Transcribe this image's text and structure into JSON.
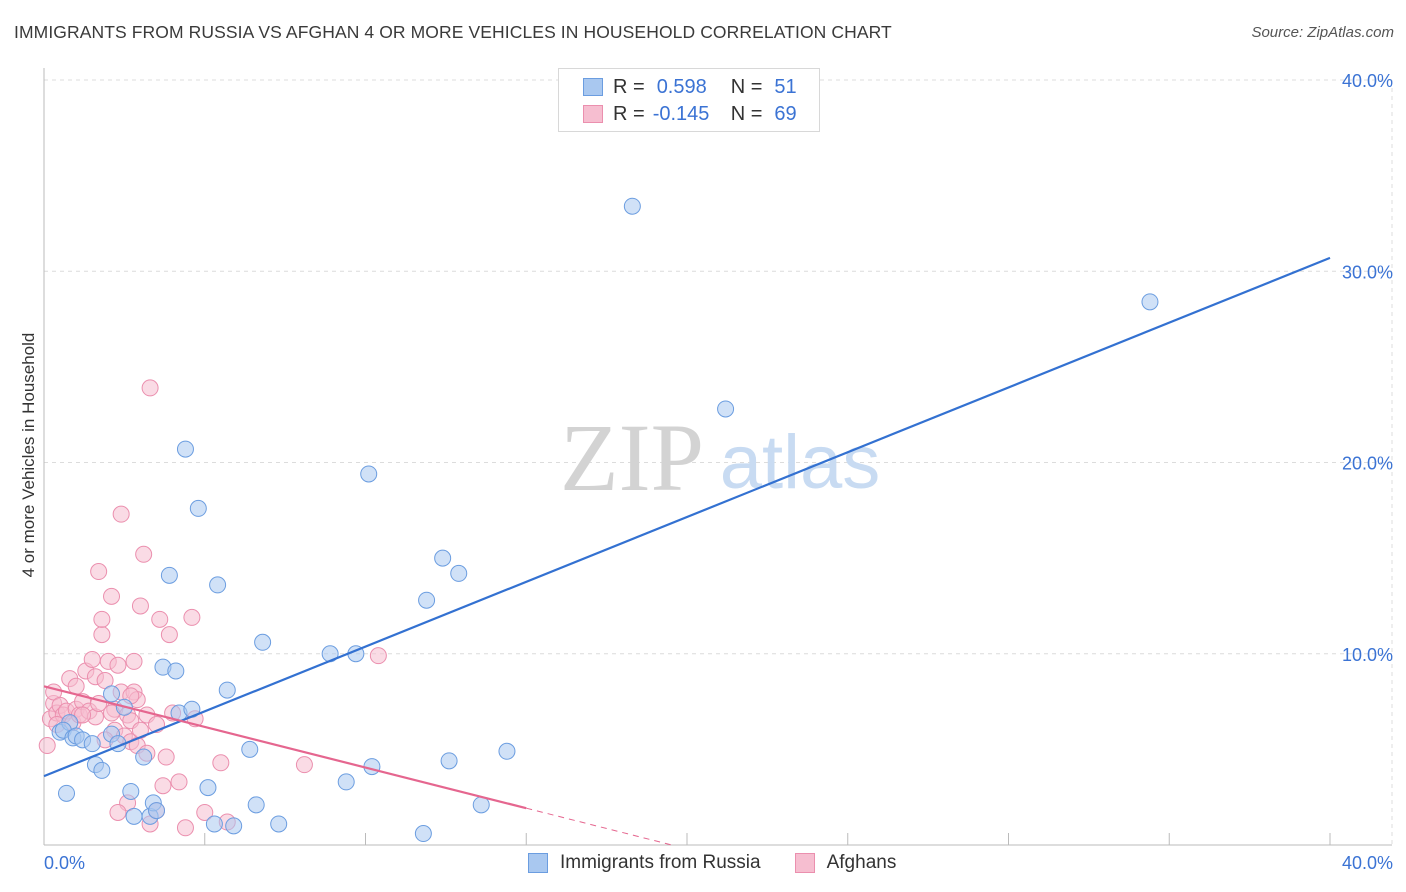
{
  "title": "IMMIGRANTS FROM RUSSIA VS AFGHAN 4 OR MORE VEHICLES IN HOUSEHOLD CORRELATION CHART",
  "source": "Source: ZipAtlas.com",
  "watermark": {
    "zip": "ZIP",
    "atlas": "atlas"
  },
  "legend": {
    "rows": [
      {
        "r_label": "R =",
        "r_value": "0.598",
        "n_label": "N =",
        "n_value": "51"
      },
      {
        "r_label": "R =",
        "r_value": "-0.145",
        "n_label": "N =",
        "n_value": "69"
      }
    ]
  },
  "bottom_legend": {
    "series1": "Immigrants from Russia",
    "series2": "Afghans"
  },
  "colors": {
    "blue_fill": "#a9c8f0",
    "blue_stroke": "#6b9de0",
    "blue_line": "#3371d1",
    "pink_fill": "#f6bed0",
    "pink_stroke": "#eb8fae",
    "pink_line": "#e5668f",
    "axis_text": "#3b73d4",
    "grid": "#dcdcdc"
  },
  "chart_data": {
    "type": "scatter",
    "title": "IMMIGRANTS FROM RUSSIA VS AFGHAN 4 OR MORE VEHICLES IN HOUSEHOLD CORRELATION CHART",
    "xlabel": "",
    "ylabel": "4 or more Vehicles in Household",
    "xlim": [
      0,
      40
    ],
    "ylim": [
      0,
      40
    ],
    "x_tick_labels": [
      "0.0%",
      "40.0%"
    ],
    "y_ticks": [
      10,
      20,
      30,
      40
    ],
    "y_tick_labels": [
      "10.0%",
      "20.0%",
      "30.0%",
      "40.0%"
    ],
    "series": [
      {
        "name": "Immigrants from Russia",
        "color": "blue",
        "R": 0.598,
        "N": 51,
        "trend": {
          "x": [
            0,
            40
          ],
          "y": [
            3.6,
            30.7
          ],
          "solid_to": 40
        },
        "points": [
          [
            0.5,
            5.9
          ],
          [
            0.8,
            6.4
          ],
          [
            0.6,
            6.0
          ],
          [
            0.9,
            5.6
          ],
          [
            0.7,
            2.7
          ],
          [
            1.0,
            5.7
          ],
          [
            1.2,
            5.5
          ],
          [
            1.5,
            5.3
          ],
          [
            1.6,
            4.2
          ],
          [
            1.8,
            3.9
          ],
          [
            2.1,
            5.8
          ],
          [
            2.1,
            7.9
          ],
          [
            2.3,
            5.3
          ],
          [
            2.5,
            7.2
          ],
          [
            2.7,
            2.8
          ],
          [
            2.8,
            1.5
          ],
          [
            3.1,
            4.6
          ],
          [
            3.3,
            1.5
          ],
          [
            3.4,
            2.2
          ],
          [
            3.5,
            1.8
          ],
          [
            3.7,
            9.3
          ],
          [
            3.9,
            14.1
          ],
          [
            4.1,
            9.1
          ],
          [
            4.4,
            20.7
          ],
          [
            4.2,
            6.9
          ],
          [
            4.6,
            7.1
          ],
          [
            4.8,
            17.6
          ],
          [
            5.1,
            3.0
          ],
          [
            5.3,
            1.1
          ],
          [
            5.4,
            13.6
          ],
          [
            5.7,
            8.1
          ],
          [
            5.9,
            1.0
          ],
          [
            6.4,
            5.0
          ],
          [
            6.6,
            2.1
          ],
          [
            6.8,
            10.6
          ],
          [
            7.3,
            1.1
          ],
          [
            8.9,
            10.0
          ],
          [
            9.4,
            3.3
          ],
          [
            10.1,
            19.4
          ],
          [
            10.2,
            4.1
          ],
          [
            11.8,
            0.6
          ],
          [
            11.9,
            12.8
          ],
          [
            12.4,
            15.0
          ],
          [
            12.6,
            4.4
          ],
          [
            12.9,
            14.2
          ],
          [
            13.6,
            2.1
          ],
          [
            14.4,
            4.9
          ],
          [
            18.3,
            33.4
          ],
          [
            21.2,
            22.8
          ],
          [
            34.4,
            28.4
          ],
          [
            9.7,
            10.0
          ]
        ]
      },
      {
        "name": "Afghans",
        "color": "pink",
        "R": -0.145,
        "N": 69,
        "trend": {
          "x": [
            0,
            40
          ],
          "y": [
            8.3,
            -8.7
          ],
          "solid_to": 15
        },
        "points": [
          [
            0.1,
            5.2
          ],
          [
            0.2,
            6.6
          ],
          [
            0.3,
            7.4
          ],
          [
            0.3,
            8.0
          ],
          [
            0.4,
            6.9
          ],
          [
            0.5,
            7.3
          ],
          [
            0.6,
            6.8
          ],
          [
            0.7,
            7.0
          ],
          [
            0.8,
            8.7
          ],
          [
            0.9,
            6.4
          ],
          [
            1.0,
            7.1
          ],
          [
            1.0,
            8.3
          ],
          [
            1.1,
            6.8
          ],
          [
            1.2,
            7.5
          ],
          [
            1.3,
            9.1
          ],
          [
            1.4,
            7.0
          ],
          [
            1.5,
            9.7
          ],
          [
            1.6,
            8.8
          ],
          [
            1.6,
            6.7
          ],
          [
            1.7,
            7.4
          ],
          [
            1.7,
            14.3
          ],
          [
            1.8,
            11.0
          ],
          [
            1.8,
            11.8
          ],
          [
            1.9,
            8.6
          ],
          [
            2.0,
            9.6
          ],
          [
            2.1,
            13.0
          ],
          [
            2.2,
            7.1
          ],
          [
            2.2,
            6.0
          ],
          [
            2.3,
            9.4
          ],
          [
            2.4,
            17.3
          ],
          [
            2.4,
            8.0
          ],
          [
            2.5,
            5.7
          ],
          [
            2.6,
            6.8
          ],
          [
            2.6,
            2.2
          ],
          [
            2.7,
            6.5
          ],
          [
            2.7,
            5.4
          ],
          [
            2.8,
            9.6
          ],
          [
            2.8,
            8.0
          ],
          [
            2.9,
            5.2
          ],
          [
            2.9,
            7.6
          ],
          [
            3.0,
            12.5
          ],
          [
            3.1,
            15.2
          ],
          [
            3.2,
            6.8
          ],
          [
            3.2,
            4.8
          ],
          [
            3.3,
            1.1
          ],
          [
            3.3,
            23.9
          ],
          [
            3.5,
            6.3
          ],
          [
            3.6,
            11.8
          ],
          [
            3.7,
            3.1
          ],
          [
            3.8,
            4.6
          ],
          [
            3.9,
            11.0
          ],
          [
            4.0,
            6.9
          ],
          [
            4.2,
            3.3
          ],
          [
            4.4,
            0.9
          ],
          [
            4.6,
            11.9
          ],
          [
            4.7,
            6.6
          ],
          [
            5.0,
            1.7
          ],
          [
            5.5,
            4.3
          ],
          [
            5.7,
            1.2
          ],
          [
            8.1,
            4.2
          ],
          [
            10.4,
            9.9
          ],
          [
            0.4,
            6.3
          ],
          [
            1.2,
            6.8
          ],
          [
            1.9,
            5.5
          ],
          [
            2.1,
            6.9
          ],
          [
            2.7,
            7.8
          ],
          [
            3.0,
            6.0
          ],
          [
            2.3,
            1.7
          ],
          [
            3.5,
            1.8
          ]
        ]
      }
    ]
  }
}
